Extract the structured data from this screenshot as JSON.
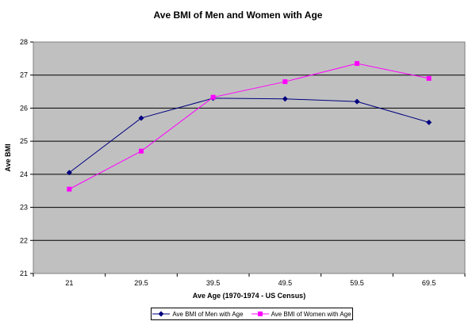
{
  "chart_data": {
    "type": "line",
    "title": "Ave BMI of Men and Women with Age",
    "xlabel": "Ave Age (1970-1974 - US Census)",
    "ylabel": "Ave BMI",
    "categories": [
      "21",
      "29.5",
      "39.5",
      "49.5",
      "59.5",
      "69.5"
    ],
    "ylim": [
      21,
      28
    ],
    "yticks": [
      "21",
      "22",
      "23",
      "24",
      "25",
      "26",
      "27",
      "28"
    ],
    "grid": true,
    "legend_position": "bottom",
    "plot_background": "#c0c0c0",
    "series": [
      {
        "name": "Ave BMI of Men with Age",
        "color": "#000080",
        "marker": "diamond",
        "values": [
          24.05,
          25.7,
          26.3,
          26.28,
          26.2,
          25.57
        ]
      },
      {
        "name": "Ave BMI of Women with Age",
        "color": "#ff00ff",
        "marker": "square",
        "values": [
          23.55,
          24.7,
          26.33,
          26.8,
          27.35,
          26.9
        ]
      }
    ]
  }
}
